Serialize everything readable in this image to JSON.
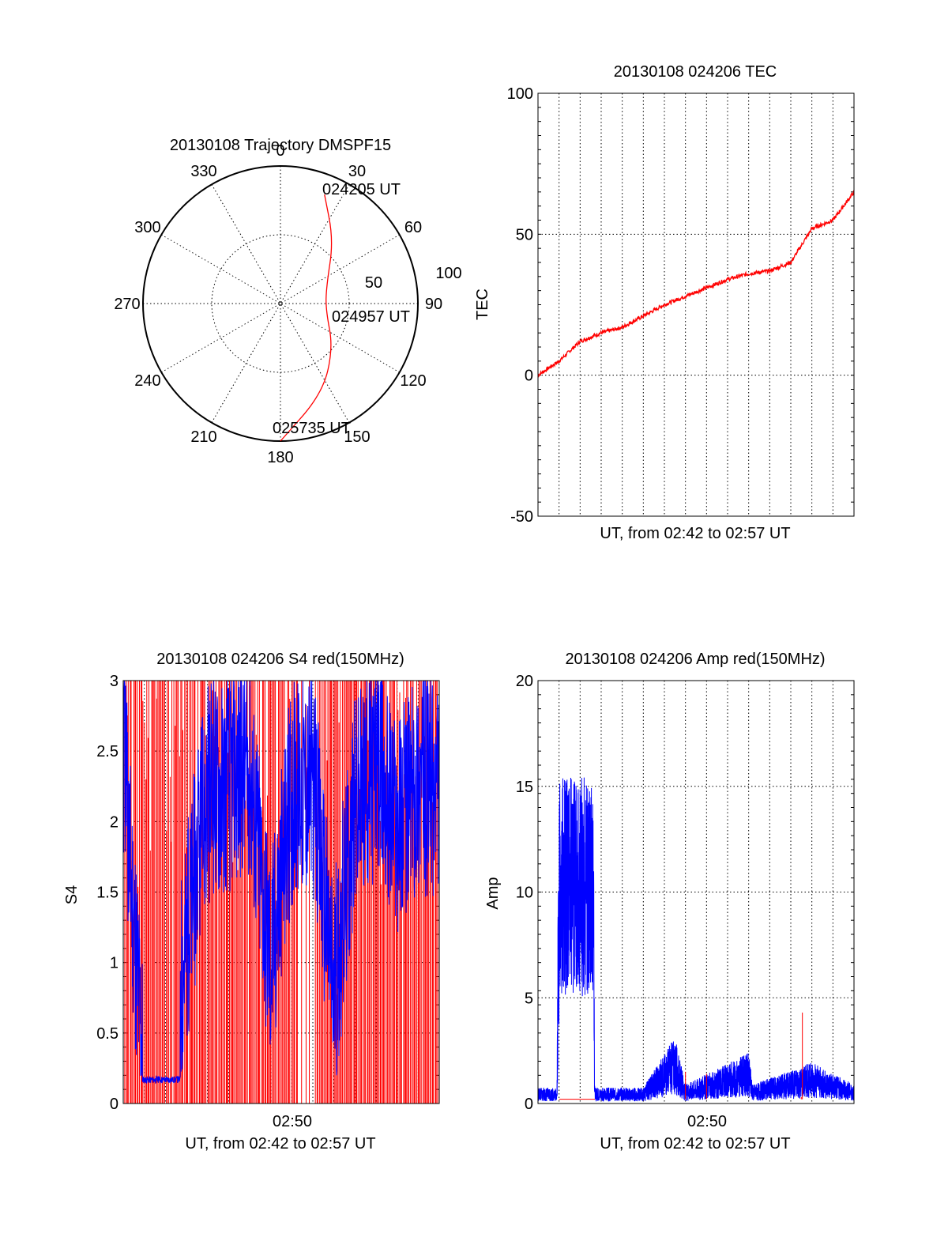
{
  "chart_data": [
    {
      "type": "polar",
      "title": "20130108 Trajectory DMSPF15",
      "azimuth_labels": [
        "0",
        "30",
        "60",
        "90",
        "120",
        "150",
        "180",
        "210",
        "240",
        "270",
        "300",
        "330"
      ],
      "radial_labels": [
        "50",
        "100"
      ],
      "grid": true,
      "trajectory": {
        "color": "#ff0000",
        "start_label": "024205 UT",
        "mid_label": "024957 UT",
        "end_label": "025735 UT",
        "points": [
          {
            "azimuth": 22,
            "elevation": 13
          },
          {
            "azimuth": 40,
            "elevation": 36
          },
          {
            "azimuth": 70,
            "elevation": 58
          },
          {
            "azimuth": 98,
            "elevation": 60
          },
          {
            "azimuth": 130,
            "elevation": 45
          },
          {
            "azimuth": 155,
            "elevation": 25
          },
          {
            "azimuth": 180,
            "elevation": 0
          }
        ]
      }
    },
    {
      "type": "line",
      "title": "20130108 024206 TEC",
      "xlabel": "UT, from 02:42 to 02:57 UT",
      "ylabel": "TEC",
      "ylim": [
        -50,
        100
      ],
      "yticks": [
        "100",
        "50",
        "0",
        "-50"
      ],
      "grid": true,
      "series": [
        {
          "color": "#ff0000",
          "x_minutes": [
            0,
            1,
            2,
            3,
            4,
            5,
            6,
            7,
            8,
            9,
            10,
            11,
            12,
            13,
            14,
            15
          ],
          "values": [
            0,
            5,
            12,
            15,
            17,
            21,
            25,
            28,
            31,
            34,
            36,
            37,
            40,
            52,
            55,
            65
          ]
        }
      ]
    },
    {
      "type": "line",
      "title": "20130108 024206 S4 red(150MHz)",
      "xlabel": "UT, from 02:42 to 02:57 UT",
      "ylabel": "S4",
      "ylim": [
        0,
        3
      ],
      "yticks": [
        "3",
        "2.5",
        "2",
        "1.5",
        "1",
        "0.5",
        "0"
      ],
      "xticks": [
        "02:50"
      ],
      "grid": true,
      "series": [
        {
          "color": "#ff0000",
          "x_minutes": [
            0,
            2,
            4,
            6,
            8,
            10,
            12,
            14,
            15
          ],
          "values": [
            3,
            0,
            3,
            0,
            3,
            0,
            3,
            0,
            3
          ]
        },
        {
          "color": "#0000ff",
          "x_minutes": [
            0,
            1,
            2,
            4,
            6,
            7,
            8,
            9,
            10,
            11,
            12,
            13,
            14,
            15
          ],
          "values": [
            2.5,
            0.2,
            0.17,
            2.2,
            2.4,
            1.0,
            2.2,
            2.3,
            0.8,
            2.1,
            2.4,
            2.0,
            2.3,
            2.2
          ]
        }
      ]
    },
    {
      "type": "line",
      "title": "20130108 024206 Amp red(150MHz)",
      "xlabel": "UT, from 02:42 to 02:57 UT",
      "ylabel": "Amp",
      "ylim": [
        0,
        20
      ],
      "yticks": [
        "20",
        "15",
        "10",
        "5",
        "0"
      ],
      "xticks": [
        "02:50"
      ],
      "grid": true,
      "series": [
        {
          "color": "#0000ff",
          "x_minutes": [
            0,
            0.9,
            1.0,
            1.5,
            2.0,
            2.6,
            2.7,
            5,
            6.5,
            7,
            10,
            10.2,
            13,
            15
          ],
          "values": [
            0.5,
            0.5,
            13,
            11,
            14,
            10,
            0.5,
            0.5,
            2.1,
            0.6,
            1.6,
            0.6,
            1.3,
            0.6
          ]
        },
        {
          "color": "#ff0000",
          "x_minutes": [
            1.0,
            2.7,
            7.0,
            7.1,
            8.0,
            8.1,
            12.5,
            12.55,
            12.6
          ],
          "values": [
            0.2,
            0.2,
            1.5,
            0.3,
            1.4,
            0.3,
            0.3,
            4.3,
            0.3
          ]
        }
      ]
    }
  ]
}
